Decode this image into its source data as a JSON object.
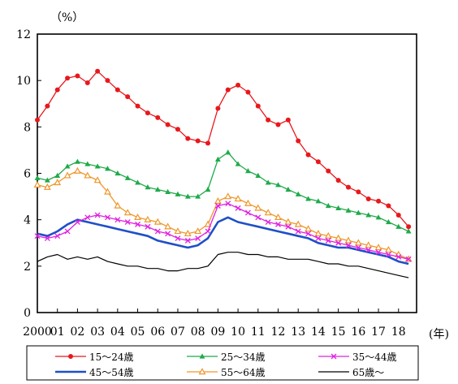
{
  "chart_data": {
    "type": "line",
    "y_unit_label": "（%）",
    "x_unit_label": "(年)",
    "ylim": [
      0,
      12
    ],
    "yticks": [
      0,
      2,
      4,
      6,
      8,
      10,
      12
    ],
    "xlim": [
      2000,
      2018.9
    ],
    "x_ticks": [
      {
        "x": 2000,
        "label": "2000"
      },
      {
        "x": 2001,
        "label": "01"
      },
      {
        "x": 2002,
        "label": "02"
      },
      {
        "x": 2003,
        "label": "03"
      },
      {
        "x": 2004,
        "label": "04"
      },
      {
        "x": 2005,
        "label": "05"
      },
      {
        "x": 2006,
        "label": "06"
      },
      {
        "x": 2007,
        "label": "07"
      },
      {
        "x": 2008,
        "label": "08"
      },
      {
        "x": 2009,
        "label": "09"
      },
      {
        "x": 2010,
        "label": "10"
      },
      {
        "x": 2011,
        "label": "11"
      },
      {
        "x": 2012,
        "label": "12"
      },
      {
        "x": 2013,
        "label": "13"
      },
      {
        "x": 2014,
        "label": "14"
      },
      {
        "x": 2015,
        "label": "15"
      },
      {
        "x": 2016,
        "label": "16"
      },
      {
        "x": 2017,
        "label": "17"
      },
      {
        "x": 2018,
        "label": "18"
      }
    ],
    "grid": false,
    "legend_position": "bottom",
    "series": [
      {
        "name": "15～24歳",
        "color": "#e8181c",
        "marker": "circle",
        "points": [
          [
            2000,
            8.3
          ],
          [
            2000.5,
            8.9
          ],
          [
            2001,
            9.6
          ],
          [
            2001.5,
            10.1
          ],
          [
            2002,
            10.2
          ],
          [
            2002.5,
            9.9
          ],
          [
            2003,
            10.4
          ],
          [
            2003.5,
            10.0
          ],
          [
            2004,
            9.6
          ],
          [
            2004.5,
            9.3
          ],
          [
            2005,
            8.9
          ],
          [
            2005.5,
            8.6
          ],
          [
            2006,
            8.4
          ],
          [
            2006.5,
            8.1
          ],
          [
            2007,
            7.9
          ],
          [
            2007.5,
            7.5
          ],
          [
            2008,
            7.4
          ],
          [
            2008.5,
            7.3
          ],
          [
            2009,
            8.8
          ],
          [
            2009.5,
            9.6
          ],
          [
            2010,
            9.8
          ],
          [
            2010.5,
            9.5
          ],
          [
            2011,
            8.9
          ],
          [
            2011.5,
            8.3
          ],
          [
            2012,
            8.1
          ],
          [
            2012.5,
            8.3
          ],
          [
            2013,
            7.4
          ],
          [
            2013.5,
            6.8
          ],
          [
            2014,
            6.5
          ],
          [
            2014.5,
            6.1
          ],
          [
            2015,
            5.7
          ],
          [
            2015.5,
            5.4
          ],
          [
            2016,
            5.2
          ],
          [
            2016.5,
            4.9
          ],
          [
            2017,
            4.8
          ],
          [
            2017.5,
            4.6
          ],
          [
            2018,
            4.2
          ],
          [
            2018.5,
            3.7
          ]
        ]
      },
      {
        "name": "25～34歳",
        "color": "#1faa4a",
        "marker": "triangle",
        "points": [
          [
            2000,
            5.8
          ],
          [
            2000.5,
            5.7
          ],
          [
            2001,
            5.9
          ],
          [
            2001.5,
            6.3
          ],
          [
            2002,
            6.5
          ],
          [
            2002.5,
            6.4
          ],
          [
            2003,
            6.3
          ],
          [
            2003.5,
            6.2
          ],
          [
            2004,
            6.0
          ],
          [
            2004.5,
            5.8
          ],
          [
            2005,
            5.6
          ],
          [
            2005.5,
            5.4
          ],
          [
            2006,
            5.3
          ],
          [
            2006.5,
            5.2
          ],
          [
            2007,
            5.1
          ],
          [
            2007.5,
            5.0
          ],
          [
            2008,
            5.0
          ],
          [
            2008.5,
            5.3
          ],
          [
            2009,
            6.6
          ],
          [
            2009.5,
            6.9
          ],
          [
            2010,
            6.4
          ],
          [
            2010.5,
            6.1
          ],
          [
            2011,
            5.9
          ],
          [
            2011.5,
            5.6
          ],
          [
            2012,
            5.5
          ],
          [
            2012.5,
            5.3
          ],
          [
            2013,
            5.1
          ],
          [
            2013.5,
            4.9
          ],
          [
            2014,
            4.8
          ],
          [
            2014.5,
            4.6
          ],
          [
            2015,
            4.5
          ],
          [
            2015.5,
            4.4
          ],
          [
            2016,
            4.3
          ],
          [
            2016.5,
            4.2
          ],
          [
            2017,
            4.1
          ],
          [
            2017.5,
            3.9
          ],
          [
            2018,
            3.7
          ],
          [
            2018.5,
            3.5
          ]
        ]
      },
      {
        "name": "35～44歳",
        "color": "#e020e0",
        "marker": "cross",
        "points": [
          [
            2000,
            3.3
          ],
          [
            2000.5,
            3.2
          ],
          [
            2001,
            3.3
          ],
          [
            2001.5,
            3.5
          ],
          [
            2002,
            3.9
          ],
          [
            2002.5,
            4.1
          ],
          [
            2003,
            4.2
          ],
          [
            2003.5,
            4.1
          ],
          [
            2004,
            4.0
          ],
          [
            2004.5,
            3.9
          ],
          [
            2005,
            3.8
          ],
          [
            2005.5,
            3.7
          ],
          [
            2006,
            3.5
          ],
          [
            2006.5,
            3.4
          ],
          [
            2007,
            3.2
          ],
          [
            2007.5,
            3.1
          ],
          [
            2008,
            3.2
          ],
          [
            2008.5,
            3.5
          ],
          [
            2009,
            4.6
          ],
          [
            2009.5,
            4.7
          ],
          [
            2010,
            4.5
          ],
          [
            2010.5,
            4.3
          ],
          [
            2011,
            4.1
          ],
          [
            2011.5,
            3.9
          ],
          [
            2012,
            3.8
          ],
          [
            2012.5,
            3.7
          ],
          [
            2013,
            3.5
          ],
          [
            2013.5,
            3.4
          ],
          [
            2014,
            3.2
          ],
          [
            2014.5,
            3.1
          ],
          [
            2015,
            3.0
          ],
          [
            2015.5,
            2.9
          ],
          [
            2016,
            2.8
          ],
          [
            2016.5,
            2.7
          ],
          [
            2017,
            2.6
          ],
          [
            2017.5,
            2.5
          ],
          [
            2018,
            2.4
          ],
          [
            2018.5,
            2.3
          ]
        ]
      },
      {
        "name": "45～54歳",
        "color": "#1f4fc8",
        "marker": "none",
        "points": [
          [
            2000,
            3.4
          ],
          [
            2000.5,
            3.3
          ],
          [
            2001,
            3.5
          ],
          [
            2001.5,
            3.8
          ],
          [
            2002,
            4.0
          ],
          [
            2002.5,
            3.9
          ],
          [
            2003,
            3.8
          ],
          [
            2003.5,
            3.7
          ],
          [
            2004,
            3.6
          ],
          [
            2004.5,
            3.5
          ],
          [
            2005,
            3.4
          ],
          [
            2005.5,
            3.3
          ],
          [
            2006,
            3.1
          ],
          [
            2006.5,
            3.0
          ],
          [
            2007,
            2.9
          ],
          [
            2007.5,
            2.8
          ],
          [
            2008,
            2.9
          ],
          [
            2008.5,
            3.2
          ],
          [
            2009,
            3.9
          ],
          [
            2009.5,
            4.1
          ],
          [
            2010,
            3.9
          ],
          [
            2010.5,
            3.8
          ],
          [
            2011,
            3.7
          ],
          [
            2011.5,
            3.6
          ],
          [
            2012,
            3.5
          ],
          [
            2012.5,
            3.4
          ],
          [
            2013,
            3.3
          ],
          [
            2013.5,
            3.2
          ],
          [
            2014,
            3.0
          ],
          [
            2014.5,
            2.9
          ],
          [
            2015,
            2.8
          ],
          [
            2015.5,
            2.8
          ],
          [
            2016,
            2.7
          ],
          [
            2016.5,
            2.6
          ],
          [
            2017,
            2.5
          ],
          [
            2017.5,
            2.4
          ],
          [
            2018,
            2.2
          ],
          [
            2018.5,
            2.1
          ]
        ]
      },
      {
        "name": "55～64歳",
        "color": "#f0962a",
        "marker": "triangle-open",
        "points": [
          [
            2000,
            5.5
          ],
          [
            2000.5,
            5.4
          ],
          [
            2001,
            5.6
          ],
          [
            2001.5,
            5.9
          ],
          [
            2002,
            6.1
          ],
          [
            2002.5,
            5.9
          ],
          [
            2003,
            5.7
          ],
          [
            2003.5,
            5.2
          ],
          [
            2004,
            4.6
          ],
          [
            2004.5,
            4.3
          ],
          [
            2005,
            4.1
          ],
          [
            2005.5,
            4.0
          ],
          [
            2006,
            3.9
          ],
          [
            2006.5,
            3.7
          ],
          [
            2007,
            3.5
          ],
          [
            2007.5,
            3.4
          ],
          [
            2008,
            3.5
          ],
          [
            2008.5,
            3.8
          ],
          [
            2009,
            4.8
          ],
          [
            2009.5,
            5.0
          ],
          [
            2010,
            4.9
          ],
          [
            2010.5,
            4.7
          ],
          [
            2011,
            4.5
          ],
          [
            2011.5,
            4.3
          ],
          [
            2012,
            4.1
          ],
          [
            2012.5,
            3.9
          ],
          [
            2013,
            3.8
          ],
          [
            2013.5,
            3.6
          ],
          [
            2014,
            3.4
          ],
          [
            2014.5,
            3.3
          ],
          [
            2015,
            3.2
          ],
          [
            2015.5,
            3.1
          ],
          [
            2016,
            3.0
          ],
          [
            2016.5,
            2.9
          ],
          [
            2017,
            2.8
          ],
          [
            2017.5,
            2.7
          ],
          [
            2018,
            2.5
          ],
          [
            2018.5,
            2.3
          ]
        ]
      },
      {
        "name": "65歳～",
        "color": "#000000",
        "marker": "none",
        "points": [
          [
            2000,
            2.2
          ],
          [
            2000.5,
            2.4
          ],
          [
            2001,
            2.5
          ],
          [
            2001.5,
            2.3
          ],
          [
            2002,
            2.4
          ],
          [
            2002.5,
            2.3
          ],
          [
            2003,
            2.4
          ],
          [
            2003.5,
            2.2
          ],
          [
            2004,
            2.1
          ],
          [
            2004.5,
            2.0
          ],
          [
            2005,
            2.0
          ],
          [
            2005.5,
            1.9
          ],
          [
            2006,
            1.9
          ],
          [
            2006.5,
            1.8
          ],
          [
            2007,
            1.8
          ],
          [
            2007.5,
            1.9
          ],
          [
            2008,
            1.9
          ],
          [
            2008.5,
            2.0
          ],
          [
            2009,
            2.5
          ],
          [
            2009.5,
            2.6
          ],
          [
            2010,
            2.6
          ],
          [
            2010.5,
            2.5
          ],
          [
            2011,
            2.5
          ],
          [
            2011.5,
            2.4
          ],
          [
            2012,
            2.4
          ],
          [
            2012.5,
            2.3
          ],
          [
            2013,
            2.3
          ],
          [
            2013.5,
            2.3
          ],
          [
            2014,
            2.2
          ],
          [
            2014.5,
            2.1
          ],
          [
            2015,
            2.1
          ],
          [
            2015.5,
            2.0
          ],
          [
            2016,
            2.0
          ],
          [
            2016.5,
            1.9
          ],
          [
            2017,
            1.8
          ],
          [
            2017.5,
            1.7
          ],
          [
            2018,
            1.6
          ],
          [
            2018.5,
            1.5
          ]
        ]
      }
    ]
  }
}
